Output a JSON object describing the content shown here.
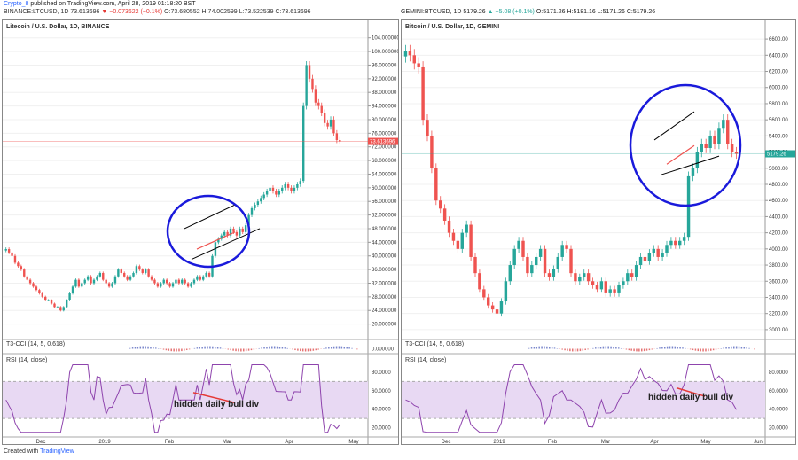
{
  "header": {
    "user": "Crypto_8",
    "published": " published on TradingView.com, April 28, 2019 01:18:20 BST",
    "symbol_line_prefix": "BINANCE:LTCUSD, 1D  73.613696 ",
    "symbol_line_change": "▼ −0.073622 (−0.1%)",
    "symbol_line_ohlc": " O:73.680552 H:74.002599 L:73.522539 C:73.613696"
  },
  "left": {
    "title": "Litecoin / U.S. Dollar, 1D, BINANCE",
    "indicator1": "T3-CCI (14, 5, 0.618)",
    "indicator2": "RSI (14, close)",
    "annotation": "hidden daily bull div",
    "price_tag": "73.613696",
    "axis_labels": [
      "104.000000",
      "100.000000",
      "96.000000",
      "92.000000",
      "88.000000",
      "84.000000",
      "80.000000",
      "76.000000",
      "72.000000",
      "68.000000",
      "64.000000",
      "60.000000",
      "56.000000",
      "52.000000",
      "48.000000",
      "44.000000",
      "40.000000",
      "36.000000",
      "32.000000",
      "28.000000",
      "24.000000",
      "20.000000"
    ],
    "cci_label": "0.000000",
    "rsi_labels": [
      "80.0000",
      "60.0000",
      "40.0000",
      "20.0000"
    ],
    "x_labels": [
      "Dec",
      "2019",
      "Feb",
      "Mar",
      "Apr",
      "May"
    ]
  },
  "right": {
    "header": {
      "prefix": "GEMINI:BTCUSD, 1D  5179.26 ",
      "change": "▲ +5.08 (+0.1%)",
      "ohlc": " O:5171.26 H:5181.16 L:5171.26 C:5179.26"
    },
    "title": "Bitcoin / U.S. Dollar, 1D, GEMINI",
    "indicator1": "T3-CCI (14, 5, 0.618)",
    "indicator2": "RSI (14, close)",
    "annotation": "hidden daily bull div",
    "price_tag": "5179.26",
    "axis_labels": [
      "6600.00",
      "6400.00",
      "6200.00",
      "6000.00",
      "5800.00",
      "5600.00",
      "5400.00",
      "5200.00",
      "5000.00",
      "4800.00",
      "4600.00",
      "4400.00",
      "4200.00",
      "4000.00",
      "3800.00",
      "3600.00",
      "3400.00",
      "3200.00",
      "3000.00"
    ],
    "rsi_labels": [
      "80.0000",
      "60.0000",
      "40.0000",
      "20.0000"
    ],
    "x_labels": [
      "Dec",
      "2019",
      "Feb",
      "Mar",
      "Apr",
      "May",
      "Jun"
    ]
  },
  "footer": {
    "created": "Created with ",
    "brand": "TradingView"
  },
  "colors": {
    "up": "#26a69a",
    "down": "#ef5350",
    "rsi_line": "#8e44ad",
    "rsi_band": "#e8d9f3",
    "circle": "#1a1adb",
    "last_price": "#ef5350",
    "btc_last": "#26a69a"
  },
  "chart_data": [
    {
      "type": "candlestick",
      "title": "Litecoin / U.S. Dollar, 1D, BINANCE",
      "ylim": [
        20,
        104
      ],
      "x_ticks": [
        "Dec",
        "2019",
        "Feb",
        "Mar",
        "Apr",
        "May"
      ],
      "close": [
        42,
        41,
        40,
        38,
        37,
        36,
        34,
        33,
        32,
        31,
        30,
        29,
        28,
        27,
        27,
        26,
        25,
        25,
        24,
        25,
        27,
        29,
        31,
        33,
        31,
        32,
        33,
        34,
        32,
        33,
        34,
        35,
        33,
        32,
        31,
        32,
        34,
        36,
        35,
        34,
        33,
        34,
        35,
        37,
        36,
        35,
        36,
        34,
        33,
        32,
        31,
        32,
        33,
        32,
        31,
        32,
        33,
        32,
        33,
        32,
        31,
        32,
        33,
        34,
        33,
        34,
        35,
        34,
        40,
        44,
        45,
        46,
        47,
        46,
        48,
        47,
        46,
        48,
        47,
        49,
        52,
        54,
        55,
        56,
        57,
        58,
        59,
        60,
        59,
        58,
        59,
        60,
        61,
        60,
        59,
        60,
        61,
        62,
        84,
        96,
        92,
        89,
        85,
        84,
        82,
        79,
        78,
        80,
        76,
        74,
        73.6
      ]
    },
    {
      "type": "candlestick",
      "title": "Bitcoin / U.S. Dollar, 1D, GEMINI",
      "ylim": [
        3000,
        6600
      ],
      "x_ticks": [
        "Dec",
        "2019",
        "Feb",
        "Mar",
        "Apr",
        "May",
        "Jun"
      ],
      "close": [
        6450,
        6400,
        6300,
        6250,
        5600,
        5400,
        5000,
        4600,
        4500,
        4350,
        4200,
        4100,
        4000,
        4200,
        4300,
        3900,
        3700,
        3500,
        3400,
        3300,
        3250,
        3200,
        3350,
        3600,
        3800,
        4000,
        4100,
        3900,
        3700,
        3800,
        3900,
        4000,
        3700,
        3650,
        3750,
        3900,
        4050,
        4000,
        3700,
        3600,
        3650,
        3700,
        3600,
        3550,
        3500,
        3600,
        3450,
        3500,
        3450,
        3550,
        3600,
        3700,
        3650,
        3800,
        3900,
        3850,
        3950,
        4000,
        3900,
        3950,
        4050,
        4100,
        4050,
        4100,
        4150,
        4900,
        5000,
        5200,
        5300,
        5250,
        5400,
        5300,
        5500,
        5600,
        5300,
        5200,
        5179
      ]
    }
  ]
}
